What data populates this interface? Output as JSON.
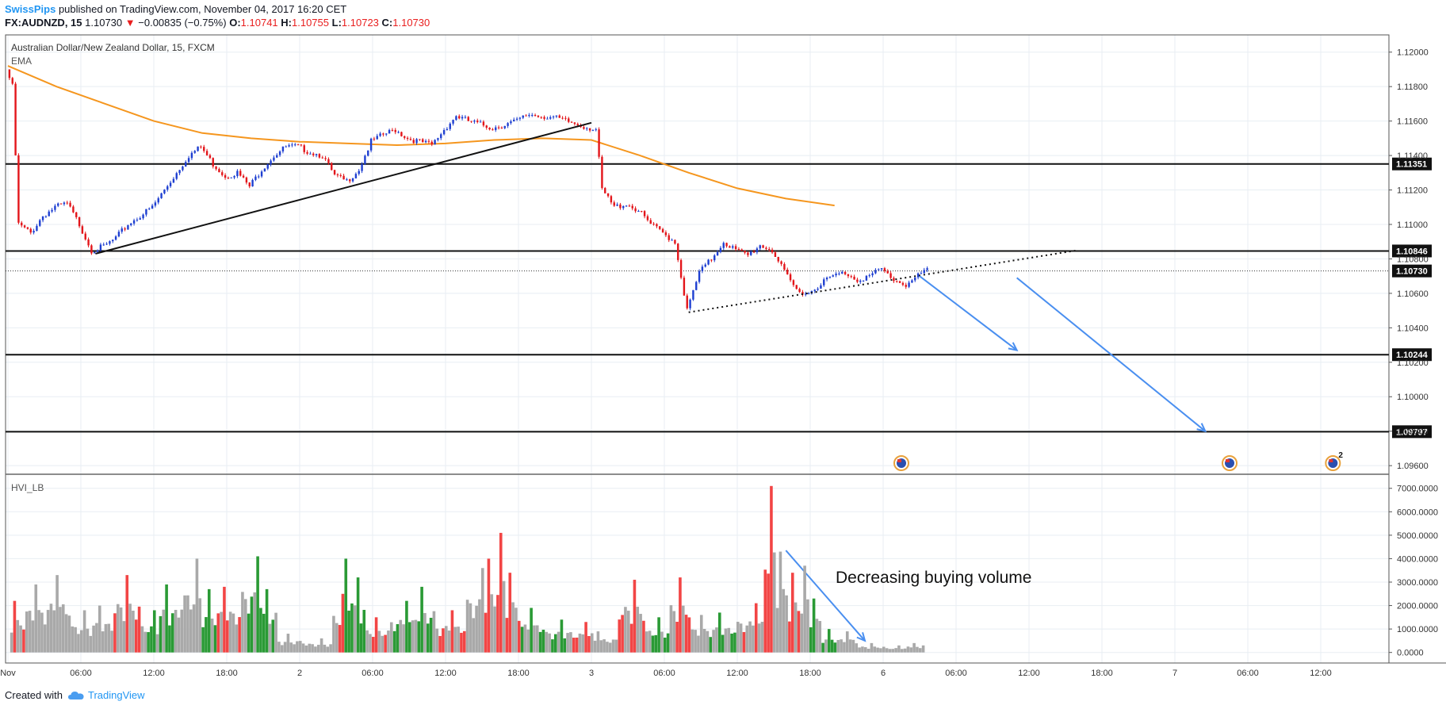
{
  "header": {
    "author": "SwissPips",
    "published_text": "published on TradingView.com, November 04, 2017 16:20 CET",
    "symbol": "FX:AUDNZD, 15",
    "last": "1.10730",
    "change": "−0.00835 (−0.75%)",
    "o_label": "O:",
    "o": "1.10741",
    "h_label": "H:",
    "h": "1.10755",
    "l_label": "L:",
    "l": "1.10723",
    "c_label": "C:",
    "c": "1.10730"
  },
  "footer": {
    "created_with": "Created with",
    "tradingview": "TradingView"
  },
  "colors": {
    "up": "#1e3fd1",
    "down": "#e3151a",
    "ema": "#f5961e",
    "arrow": "#4a8ff0",
    "vol_up": "#2a9a35",
    "vol_down": "#f24545",
    "vol_neutral": "#a9a9a9"
  },
  "chart_data": [
    {
      "type": "candlestick",
      "title": "Australian Dollar/New Zealand Dollar, 15, FXCM",
      "indicator": "EMA",
      "ylim": [
        1.0955,
        1.121
      ],
      "y_ticks": [
        "1.12000",
        "1.11800",
        "1.11600",
        "1.11400",
        "1.11200",
        "1.11000",
        "1.10800",
        "1.10600",
        "1.10400",
        "1.10200",
        "1.10000",
        "1.09800",
        "1.09600"
      ],
      "x_ticks": [
        "Nov",
        "06:00",
        "12:00",
        "18:00",
        "2",
        "06:00",
        "12:00",
        "18:00",
        "3",
        "06:00",
        "12:00",
        "18:00",
        "6",
        "06:00",
        "12:00",
        "18:00",
        "7",
        "06:00",
        "12:00"
      ],
      "x_ticks_hours": [
        0,
        6,
        12,
        18,
        24,
        30,
        36,
        42,
        48,
        54,
        60,
        66,
        72,
        78,
        84,
        90,
        96,
        102,
        108
      ],
      "horizontal_levels": [
        {
          "price": 1.11351,
          "label": "1.11351"
        },
        {
          "price": 1.10846,
          "label": "1.10846"
        },
        {
          "price": 1.10244,
          "label": "1.10244"
        },
        {
          "price": 1.09797,
          "label": "1.09797"
        }
      ],
      "current_price": {
        "price": 1.1073,
        "label": "1.10730"
      },
      "trendlines": [
        {
          "style": "solid",
          "from": [
            7.2,
            1.1083
          ],
          "to": [
            48.0,
            1.1159
          ]
        },
        {
          "style": "dotted",
          "from": [
            56.0,
            1.1049
          ],
          "to": [
            88.0,
            1.1085
          ]
        }
      ],
      "annotations": [
        {
          "type": "arrow",
          "from": [
            75.0,
            1.107
          ],
          "to": [
            83.0,
            1.1027
          ]
        },
        {
          "type": "arrow",
          "from": [
            83.0,
            1.1069
          ],
          "to": [
            98.5,
            1.098
          ]
        }
      ],
      "event_markers": [
        {
          "x": 73.5,
          "badge": ""
        },
        {
          "x": 100.5,
          "badge": ""
        },
        {
          "x": 109.0,
          "badge": "2"
        }
      ],
      "ema_points": [
        [
          0,
          1.1192
        ],
        [
          4,
          1.118
        ],
        [
          8,
          1.117
        ],
        [
          12,
          1.116
        ],
        [
          16,
          1.1153
        ],
        [
          20,
          1.115
        ],
        [
          24,
          1.1148
        ],
        [
          28,
          1.1147
        ],
        [
          32,
          1.1146
        ],
        [
          36,
          1.1147
        ],
        [
          40,
          1.1149
        ],
        [
          44,
          1.115
        ],
        [
          48,
          1.1149
        ],
        [
          52,
          1.114
        ],
        [
          56,
          1.113
        ],
        [
          60,
          1.1121
        ],
        [
          64,
          1.1115
        ],
        [
          68,
          1.1111
        ]
      ],
      "price_path": [
        [
          0,
          1.119
        ],
        [
          0.5,
          1.118
        ],
        [
          1,
          1.11
        ],
        [
          2,
          1.1095
        ],
        [
          3,
          1.1105
        ],
        [
          4,
          1.111
        ],
        [
          5,
          1.1112
        ],
        [
          6,
          1.11
        ],
        [
          7,
          1.1085
        ],
        [
          8,
          1.1087
        ],
        [
          9,
          1.1092
        ],
        [
          10,
          1.11
        ],
        [
          11,
          1.1105
        ],
        [
          12,
          1.111
        ],
        [
          13,
          1.112
        ],
        [
          14,
          1.113
        ],
        [
          15,
          1.114
        ],
        [
          16,
          1.1145
        ],
        [
          17,
          1.1135
        ],
        [
          18,
          1.1128
        ],
        [
          19,
          1.113
        ],
        [
          20,
          1.1122
        ],
        [
          21,
          1.1132
        ],
        [
          22,
          1.114
        ],
        [
          23,
          1.1145
        ],
        [
          24,
          1.1145
        ],
        [
          25,
          1.1142
        ],
        [
          26,
          1.114
        ],
        [
          27,
          1.1128
        ],
        [
          28,
          1.1125
        ],
        [
          29,
          1.1132
        ],
        [
          30,
          1.1148
        ],
        [
          31,
          1.1152
        ],
        [
          32,
          1.1155
        ],
        [
          33,
          1.115
        ],
        [
          34,
          1.1148
        ],
        [
          35,
          1.1146
        ],
        [
          36,
          1.1155
        ],
        [
          37,
          1.1163
        ],
        [
          38,
          1.116
        ],
        [
          39,
          1.1158
        ],
        [
          40,
          1.1156
        ],
        [
          41,
          1.1158
        ],
        [
          42,
          1.116
        ],
        [
          43,
          1.1164
        ],
        [
          44,
          1.1163
        ],
        [
          45,
          1.1162
        ],
        [
          46,
          1.116
        ],
        [
          47,
          1.1158
        ],
        [
          48,
          1.1156
        ],
        [
          48.5,
          1.1155
        ],
        [
          49,
          1.112
        ],
        [
          50,
          1.111
        ],
        [
          51,
          1.1112
        ],
        [
          52,
          1.1108
        ],
        [
          53,
          1.11
        ],
        [
          54,
          1.1095
        ],
        [
          55,
          1.109
        ],
        [
          55.5,
          1.107
        ],
        [
          56,
          1.105
        ],
        [
          57,
          1.1072
        ],
        [
          58,
          1.108
        ],
        [
          59,
          1.109
        ],
        [
          60,
          1.1085
        ],
        [
          61,
          1.1082
        ],
        [
          62,
          1.1088
        ],
        [
          63,
          1.1085
        ],
        [
          64,
          1.1072
        ],
        [
          65,
          1.1062
        ],
        [
          66,
          1.106
        ],
        [
          67,
          1.1066
        ],
        [
          68,
          1.107
        ],
        [
          69,
          1.1072
        ],
        [
          70,
          1.1068
        ],
        [
          71,
          1.107
        ],
        [
          72,
          1.1074
        ],
        [
          73,
          1.1068
        ],
        [
          74,
          1.1065
        ],
        [
          75,
          1.107
        ],
        [
          75.5,
          1.1073
        ]
      ]
    },
    {
      "type": "bar",
      "title": "HVI_LB",
      "ylim": [
        -450,
        7600
      ],
      "y_ticks": [
        7000,
        6000,
        5000,
        4000,
        3000,
        2000,
        1000,
        0
      ],
      "y_tick_labels": [
        "7000.0000",
        "6000.0000",
        "5000.0000",
        "4000.0000",
        "3000.0000",
        "2000.0000",
        "1000.0000",
        "0.0000"
      ],
      "bar_x_range_hours": [
        0.3,
        75.5
      ],
      "bars": [
        {
          "x": 0.5,
          "v": 2200,
          "c": "r"
        },
        {
          "x": 2.3,
          "v": 2900,
          "c": "n"
        },
        {
          "x": 4.0,
          "v": 3300,
          "c": "n"
        },
        {
          "x": 6.2,
          "v": 1800,
          "c": "n"
        },
        {
          "x": 7.6,
          "v": 2000,
          "c": "n"
        },
        {
          "x": 9.8,
          "v": 3300,
          "c": "r"
        },
        {
          "x": 12.0,
          "v": 1800,
          "c": "g"
        },
        {
          "x": 13.0,
          "v": 2900,
          "c": "g"
        },
        {
          "x": 15.5,
          "v": 4000,
          "c": "n"
        },
        {
          "x": 16.5,
          "v": 2700,
          "c": "g"
        },
        {
          "x": 17.8,
          "v": 2800,
          "c": "r"
        },
        {
          "x": 20.5,
          "v": 4100,
          "c": "g"
        },
        {
          "x": 21.3,
          "v": 2700,
          "c": "g"
        },
        {
          "x": 23.0,
          "v": 800,
          "c": "n"
        },
        {
          "x": 25.8,
          "v": 600,
          "c": "n"
        },
        {
          "x": 27.5,
          "v": 2500,
          "c": "r"
        },
        {
          "x": 27.9,
          "v": 4000,
          "c": "g"
        },
        {
          "x": 28.8,
          "v": 3200,
          "c": "g"
        },
        {
          "x": 30.2,
          "v": 1500,
          "c": "r"
        },
        {
          "x": 32.8,
          "v": 2200,
          "c": "g"
        },
        {
          "x": 34.0,
          "v": 2800,
          "c": "g"
        },
        {
          "x": 36.5,
          "v": 1800,
          "c": "r"
        },
        {
          "x": 39.0,
          "v": 3600,
          "c": "n"
        },
        {
          "x": 39.5,
          "v": 4000,
          "c": "r"
        },
        {
          "x": 40.6,
          "v": 5100,
          "c": "r"
        },
        {
          "x": 41.4,
          "v": 3400,
          "c": "r"
        },
        {
          "x": 43.0,
          "v": 1900,
          "c": "g"
        },
        {
          "x": 45.5,
          "v": 1400,
          "c": "g"
        },
        {
          "x": 47.5,
          "v": 1300,
          "c": "r"
        },
        {
          "x": 48.6,
          "v": 900,
          "c": "n"
        },
        {
          "x": 51.5,
          "v": 3100,
          "c": "r"
        },
        {
          "x": 53.5,
          "v": 1500,
          "c": "g"
        },
        {
          "x": 55.2,
          "v": 3200,
          "c": "r"
        },
        {
          "x": 57.0,
          "v": 1600,
          "c": "n"
        },
        {
          "x": 58.5,
          "v": 1700,
          "c": "g"
        },
        {
          "x": 61.5,
          "v": 2100,
          "c": "r"
        },
        {
          "x": 62.8,
          "v": 7100,
          "c": "r"
        },
        {
          "x": 63.5,
          "v": 4300,
          "c": "n"
        },
        {
          "x": 64.6,
          "v": 3400,
          "c": "r"
        },
        {
          "x": 65.5,
          "v": 3700,
          "c": "n"
        },
        {
          "x": 66.3,
          "v": 2300,
          "c": "g"
        },
        {
          "x": 67.5,
          "v": 1000,
          "c": "g"
        },
        {
          "x": 69.0,
          "v": 900,
          "c": "n"
        },
        {
          "x": 71.0,
          "v": 400,
          "c": "n"
        },
        {
          "x": 73.3,
          "v": 300,
          "c": "n"
        },
        {
          "x": 74.6,
          "v": 400,
          "c": "n"
        },
        {
          "x": 75.3,
          "v": 300,
          "c": "n"
        }
      ],
      "annotation_text": "Decreasing buying volume",
      "annotation_arrow": {
        "from": [
          64.0,
          4350
        ],
        "to": [
          70.5,
          500
        ]
      }
    }
  ]
}
